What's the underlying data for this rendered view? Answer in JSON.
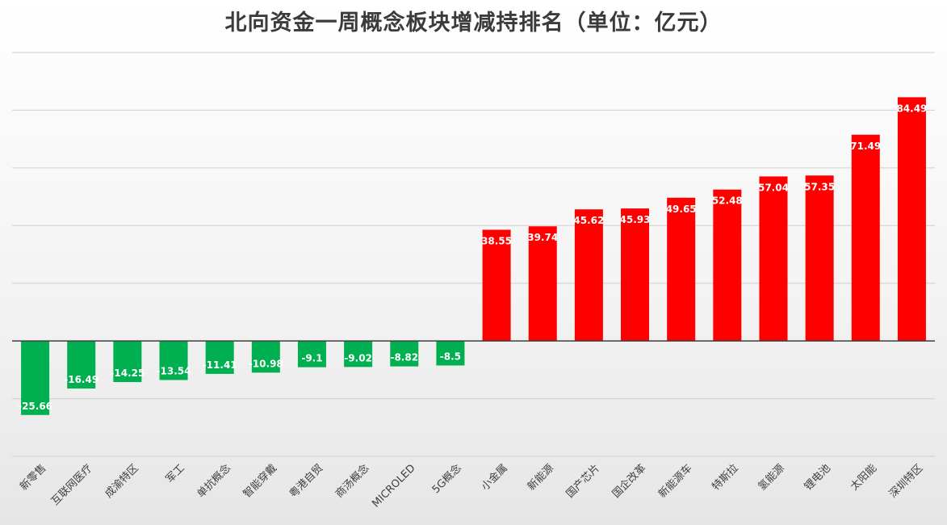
{
  "chart_data": {
    "type": "bar",
    "title": "北向资金一周概念板块增减持排名（单位：亿元）",
    "xlabel": "",
    "ylabel": "",
    "ylim": [
      -40,
      100
    ],
    "grid": true,
    "legend": "none",
    "categories": [
      "新零售",
      "互联网医疗",
      "成渝特区",
      "军工",
      "单抗概念",
      "智能穿戴",
      "粤港自贸",
      "商汤概念",
      "MICROLED",
      "5G概念",
      "小金属",
      "新能源",
      "国产芯片",
      "国企改革",
      "新能源车",
      "特斯拉",
      "氢能源",
      "锂电池",
      "太阳能",
      "深圳特区"
    ],
    "values": [
      -25.66,
      -16.49,
      -14.25,
      -13.54,
      -11.41,
      -10.98,
      -9.1,
      -9.02,
      -8.82,
      -8.5,
      38.55,
      39.74,
      45.62,
      45.93,
      49.65,
      52.48,
      57.04,
      57.35,
      71.49,
      84.49
    ],
    "data_labels": [
      "-25.66",
      "-16.49",
      "-14.25",
      "-13.54",
      "-11.41",
      "-10.98",
      "-9.1",
      "-9.02",
      "-8.82",
      "-8.5",
      "38.55",
      "39.74",
      "45.62",
      "45.93",
      "49.65",
      "52.48",
      "57.04",
      "57.35",
      "71.49",
      "84.49"
    ],
    "colors": {
      "positive": "#ff0000",
      "negative": "#00b050",
      "grid": "#d0d0d0",
      "axis": "#3f3f3f",
      "label": "#ffffff",
      "tick": "#404040"
    }
  }
}
